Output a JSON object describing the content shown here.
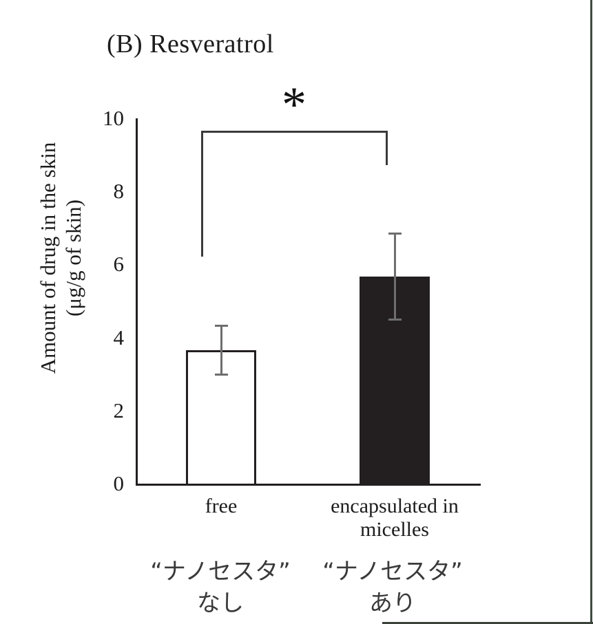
{
  "figure": {
    "panel_label": "(B)",
    "title": "(B) Resveratrol"
  },
  "chart_data": {
    "type": "bar",
    "title": "(B) Resveratrol",
    "ylabel": "Amount of drug in the skin (μg/g of skin)",
    "ylabel_line1": "Amount of drug in the skin",
    "ylabel_line2": "(μg/g of skin)",
    "xlabel": "",
    "categories": [
      "free",
      "encapsulated in micelles"
    ],
    "values": [
      3.65,
      5.67
    ],
    "error_bars": [
      0.7,
      1.2
    ],
    "bar_fills": [
      "#ffffff",
      "#231f20"
    ],
    "bar_edge_color": "#231f20",
    "error_bar_color": "#6e6e6e",
    "ylim": [
      0,
      10
    ],
    "yticks": [
      0,
      2,
      4,
      6,
      8,
      10
    ],
    "grid": false,
    "legend": false,
    "significance": {
      "label": "*",
      "between": [
        "free",
        "encapsulated in micelles"
      ]
    },
    "annotations_jp": [
      {
        "line1": "“ナノセスタ”",
        "line2": "なし"
      },
      {
        "line1": "“ナノセスタ”",
        "line2": "あり"
      }
    ]
  }
}
